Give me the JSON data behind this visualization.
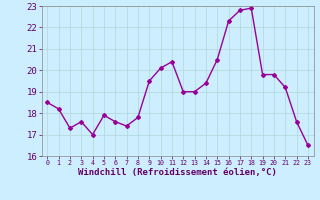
{
  "x": [
    0,
    1,
    2,
    3,
    4,
    5,
    6,
    7,
    8,
    9,
    10,
    11,
    12,
    13,
    14,
    15,
    16,
    17,
    18,
    19,
    20,
    21,
    22,
    23
  ],
  "y": [
    18.5,
    18.2,
    17.3,
    17.6,
    17.0,
    17.9,
    17.6,
    17.4,
    17.8,
    19.5,
    20.1,
    20.4,
    19.0,
    19.0,
    19.4,
    20.5,
    22.3,
    22.8,
    22.9,
    19.8,
    19.8,
    19.2,
    17.6,
    16.5
  ],
  "color": "#990099",
  "bg_color": "#cceeff",
  "grid_color": "#b0d8d8",
  "xlabel": "Windchill (Refroidissement éolien,°C)",
  "ylim": [
    16,
    23
  ],
  "yticks": [
    16,
    17,
    18,
    19,
    20,
    21,
    22,
    23
  ],
  "xticks": [
    0,
    1,
    2,
    3,
    4,
    5,
    6,
    7,
    8,
    9,
    10,
    11,
    12,
    13,
    14,
    15,
    16,
    17,
    18,
    19,
    20,
    21,
    22,
    23
  ],
  "xlabel_fontsize": 6.5,
  "tick_fontsize": 6.5,
  "marker": "D",
  "markersize": 2.0,
  "linewidth": 1.0
}
